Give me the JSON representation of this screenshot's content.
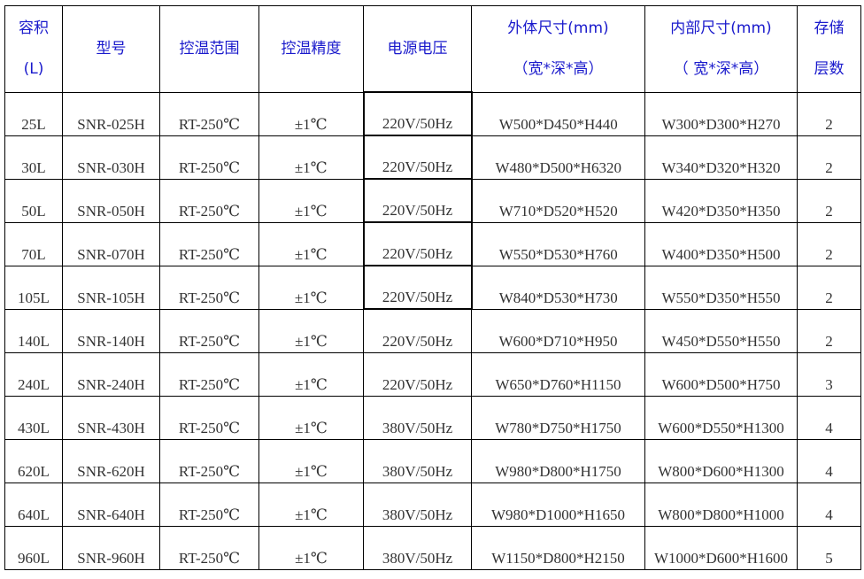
{
  "header": {
    "volume": [
      "容积",
      "(L)"
    ],
    "model": "型号",
    "temp_range": "控温范围",
    "temp_accuracy": "控温精度",
    "voltage": "电源电压",
    "outer_size": [
      "外体尺寸(mm)",
      "（宽*深*高）"
    ],
    "inner_size": [
      "内部尺寸(mm)",
      "（ 宽*深*高）"
    ],
    "shelves": [
      "存储",
      "层数"
    ]
  },
  "rows": [
    [
      "25L",
      "SNR-025H",
      "RT-250℃",
      "±1℃",
      "220V/50Hz",
      "W500*D450*H440",
      "W300*D300*H270",
      "2"
    ],
    [
      "30L",
      "SNR-030H",
      "RT-250℃",
      "±1℃",
      "220V/50Hz",
      "W480*D500*H6320",
      "W340*D320*H320",
      "2"
    ],
    [
      "50L",
      "SNR-050H",
      "RT-250℃",
      "±1℃",
      "220V/50Hz",
      "W710*D520*H520",
      "W420*D350*H350",
      "2"
    ],
    [
      "70L",
      "SNR-070H",
      "RT-250℃",
      "±1℃",
      "220V/50Hz",
      "W550*D530*H760",
      "W400*D350*H500",
      "2"
    ],
    [
      "105L",
      "SNR-105H",
      "RT-250℃",
      "±1℃",
      "220V/50Hz",
      "W840*D530*H730",
      "W550*D350*H550",
      "2"
    ],
    [
      "140L",
      "SNR-140H",
      "RT-250℃",
      "±1℃",
      "220V/50Hz",
      "W600*D710*H950",
      "W450*D550*H550",
      "2"
    ],
    [
      "240L",
      "SNR-240H",
      "RT-250℃",
      "±1℃",
      "220V/50Hz",
      "W650*D760*H1150",
      "W600*D500*H750",
      "3"
    ],
    [
      "430L",
      "SNR-430H",
      "RT-250℃",
      "±1℃",
      "380V/50Hz",
      "W780*D750*H1750",
      "W600*D550*H1300",
      "4"
    ],
    [
      "620L",
      "SNR-620H",
      "RT-250℃",
      "±1℃",
      "380V/50Hz",
      "W980*D800*H1750",
      "W800*D600*H1300",
      "4"
    ],
    [
      "640L",
      "SNR-640H",
      "RT-250℃",
      "±1℃",
      "380V/50Hz",
      "W980*D1000*H1650",
      "W800*D800*H1000",
      "4"
    ],
    [
      "960L",
      "SNR-960H",
      "RT-250℃",
      "±1℃",
      "380V/50Hz",
      "W1150*D800*H2150",
      "W1000*D600*H1600",
      "5"
    ]
  ],
  "colors": {
    "header_text": "#1a1acc",
    "body_text": "#333333",
    "border": "#000000"
  }
}
